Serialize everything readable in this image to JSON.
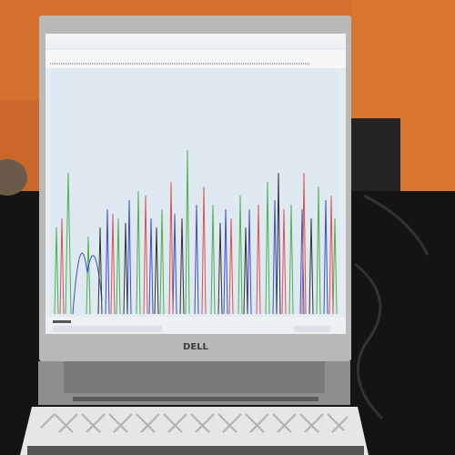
{
  "logo": "DELL"
}
